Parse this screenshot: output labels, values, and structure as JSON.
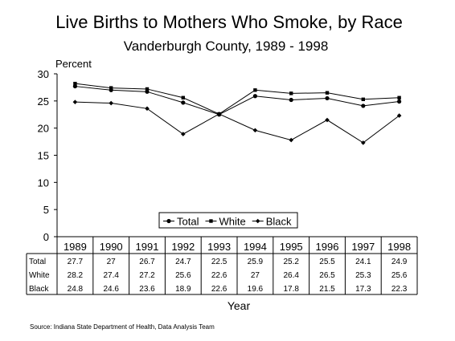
{
  "chart_data": {
    "type": "line",
    "title": "Live Births to Mothers Who Smoke, by Race",
    "subtitle": "Vanderburgh County, 1989 - 1998",
    "ylabel": "Percent",
    "xlabel": "Year",
    "ylim": [
      0,
      30
    ],
    "yticks": [
      "0",
      "5",
      "10",
      "15",
      "20",
      "25",
      "30"
    ],
    "ytick_values": [
      0,
      5,
      10,
      15,
      20,
      25,
      30
    ],
    "categories": [
      "1989",
      "1990",
      "1991",
      "1992",
      "1993",
      "1994",
      "1995",
      "1996",
      "1997",
      "1998"
    ],
    "series": [
      {
        "name": "Total",
        "marker": "circle",
        "color": "#000000",
        "values": [
          27.7,
          27,
          26.7,
          24.7,
          22.5,
          25.9,
          25.2,
          25.5,
          24.1,
          24.9
        ],
        "labels": [
          "27.7",
          "27",
          "26.7",
          "24.7",
          "22.5",
          "25.9",
          "25.2",
          "25.5",
          "24.1",
          "24.9"
        ]
      },
      {
        "name": "White",
        "marker": "square",
        "color": "#000000",
        "values": [
          28.2,
          27.4,
          27.2,
          25.6,
          22.6,
          27,
          26.4,
          26.5,
          25.3,
          25.6
        ],
        "labels": [
          "28.2",
          "27.4",
          "27.2",
          "25.6",
          "22.6",
          "27",
          "26.4",
          "26.5",
          "25.3",
          "25.6"
        ]
      },
      {
        "name": "Black",
        "marker": "diamond",
        "color": "#000000",
        "values": [
          24.8,
          24.6,
          23.6,
          18.9,
          22.6,
          19.6,
          17.8,
          21.5,
          17.3,
          22.3
        ],
        "labels": [
          "24.8",
          "24.6",
          "23.6",
          "18.9",
          "22.6",
          "19.6",
          "17.8",
          "21.5",
          "17.3",
          "22.3"
        ]
      }
    ],
    "legend_position": "bottom-center",
    "grid": false
  },
  "source": "Source:  Indiana State Department of Health, Data Analysis Team"
}
